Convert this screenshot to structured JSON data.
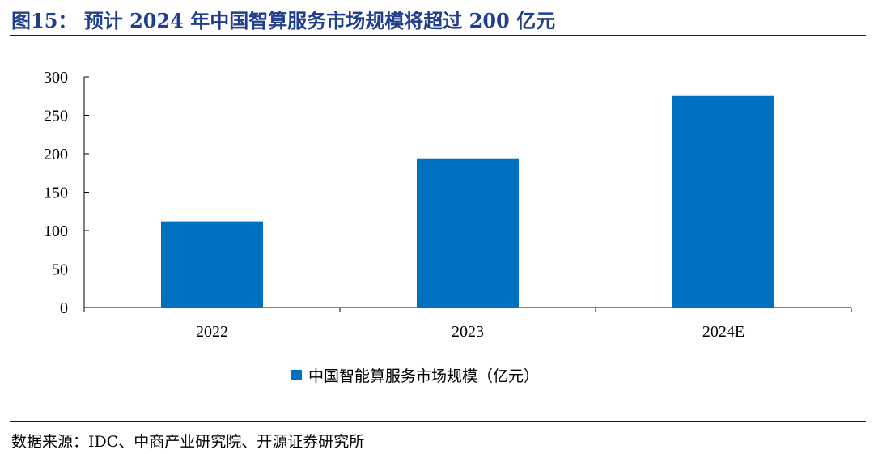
{
  "figure": {
    "title": "图15：  预计 2024 年中国智算服务市场规模将超过 200 亿元",
    "source": "数据来源：IDC、中商产业研究院、开源证券研究所"
  },
  "chart_data": {
    "type": "bar",
    "categories": [
      "2022",
      "2023",
      "2024E"
    ],
    "series": [
      {
        "name": "中国智能算服务市场规模（亿元）",
        "values": [
          112,
          194,
          275
        ],
        "color": "#0070c0"
      }
    ],
    "title": "",
    "xlabel": "",
    "ylabel": "",
    "ylim": [
      0,
      300
    ],
    "yticks": [
      "0",
      "50",
      "100",
      "150",
      "200",
      "250",
      "300"
    ],
    "grid": false,
    "legend_position": "bottom-center"
  }
}
